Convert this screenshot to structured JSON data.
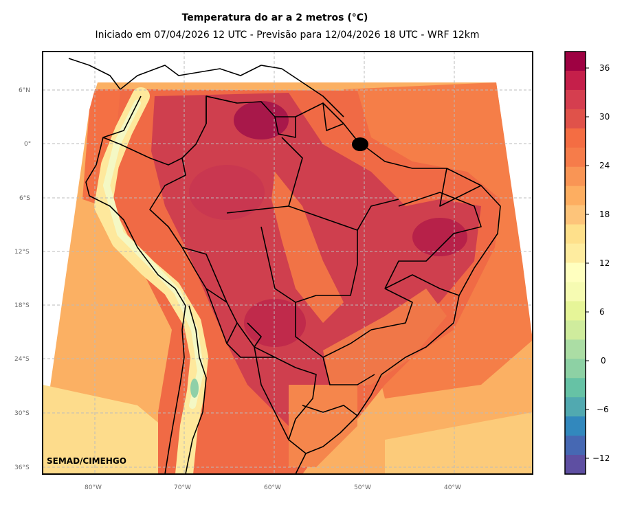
{
  "header": {
    "title": "Temperatura do ar a 2 metros (°C)",
    "subtitle": "Iniciado em 07/04/2026 12 UTC - Previsão para 12/04/2026 18 UTC - WRF 12km"
  },
  "map": {
    "credit": "SEMAD/CIMEHGO",
    "lat_labels": [
      "6°N",
      "0°",
      "6°S",
      "12°S",
      "18°S",
      "24°S",
      "30°S",
      "36°S"
    ],
    "lon_labels": [
      "80°W",
      "70°W",
      "60°W",
      "50°W",
      "40°W"
    ]
  },
  "colorbar": {
    "ticks": [
      "36",
      "30",
      "24",
      "18",
      "12",
      "6",
      "0",
      "−6",
      "−12"
    ],
    "colors": [
      "#9e0142",
      "#c51f4a",
      "#d53e4f",
      "#e0524a",
      "#f46d43",
      "#f67c4a",
      "#f99555",
      "#fdae61",
      "#fdc47a",
      "#fee08b",
      "#feec9f",
      "#ffffbf",
      "#f6fbb2",
      "#e6f598",
      "#cfec9d",
      "#abdda4",
      "#8dd1a4",
      "#66c2a5",
      "#51a9b0",
      "#3288bd",
      "#4668b3",
      "#5e4fa2"
    ]
  },
  "colors": {
    "hot": "#c73b4d",
    "warm": "#f07a48",
    "mild": "#fbb063",
    "cool": "#fde39a",
    "cold": "#f3f7c0"
  }
}
